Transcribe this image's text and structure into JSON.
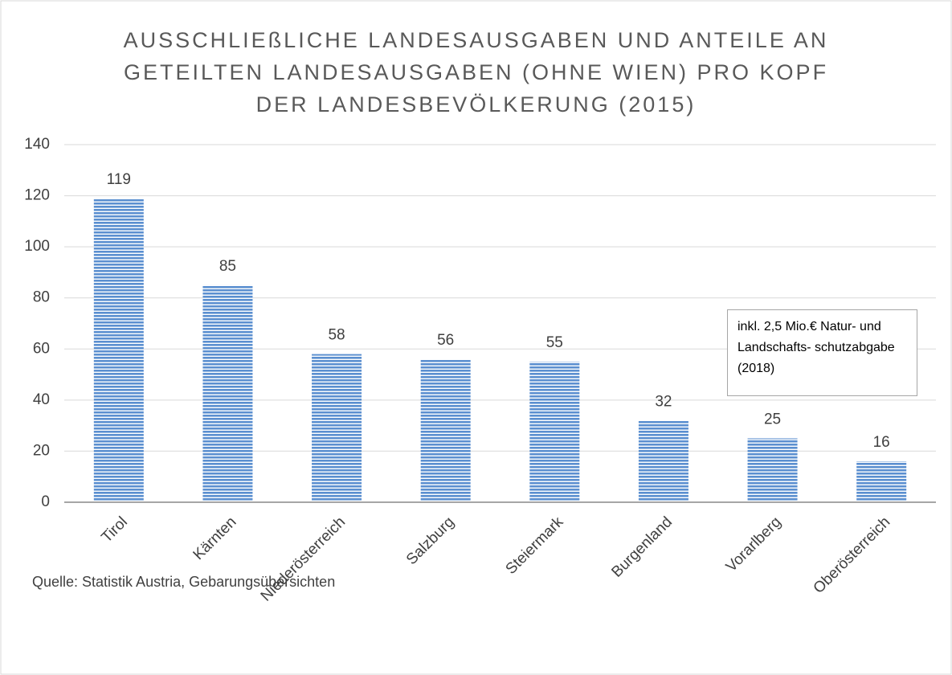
{
  "chart_data": {
    "type": "bar",
    "title": "AUSSCHLIEßLICHE LANDESAUSGABEN UND ANTEILE AN GETEILTEN LANDESAUSGABEN (OHNE WIEN) PRO KOPF DER LANDESBEVÖLKERUNG (2015)",
    "categories": [
      "Tirol",
      "Kärnten",
      "Niederösterreich",
      "Salzburg",
      "Steiermark",
      "Burgenland",
      "Vorarlberg",
      "Oberösterreich"
    ],
    "values": [
      119,
      85,
      58,
      56,
      55,
      32,
      25,
      16
    ],
    "color": "#5b8fd0",
    "ylim": [
      0,
      140
    ],
    "yticks": [
      0,
      20,
      40,
      60,
      80,
      100,
      120,
      140
    ],
    "grid": true,
    "annotation": "inkl. 2,5 Mio.€ Natur- und Landschafts- schutzabgabe (2018)",
    "source": "Quelle: Statistik Austria, Gebarungsübersichten"
  }
}
